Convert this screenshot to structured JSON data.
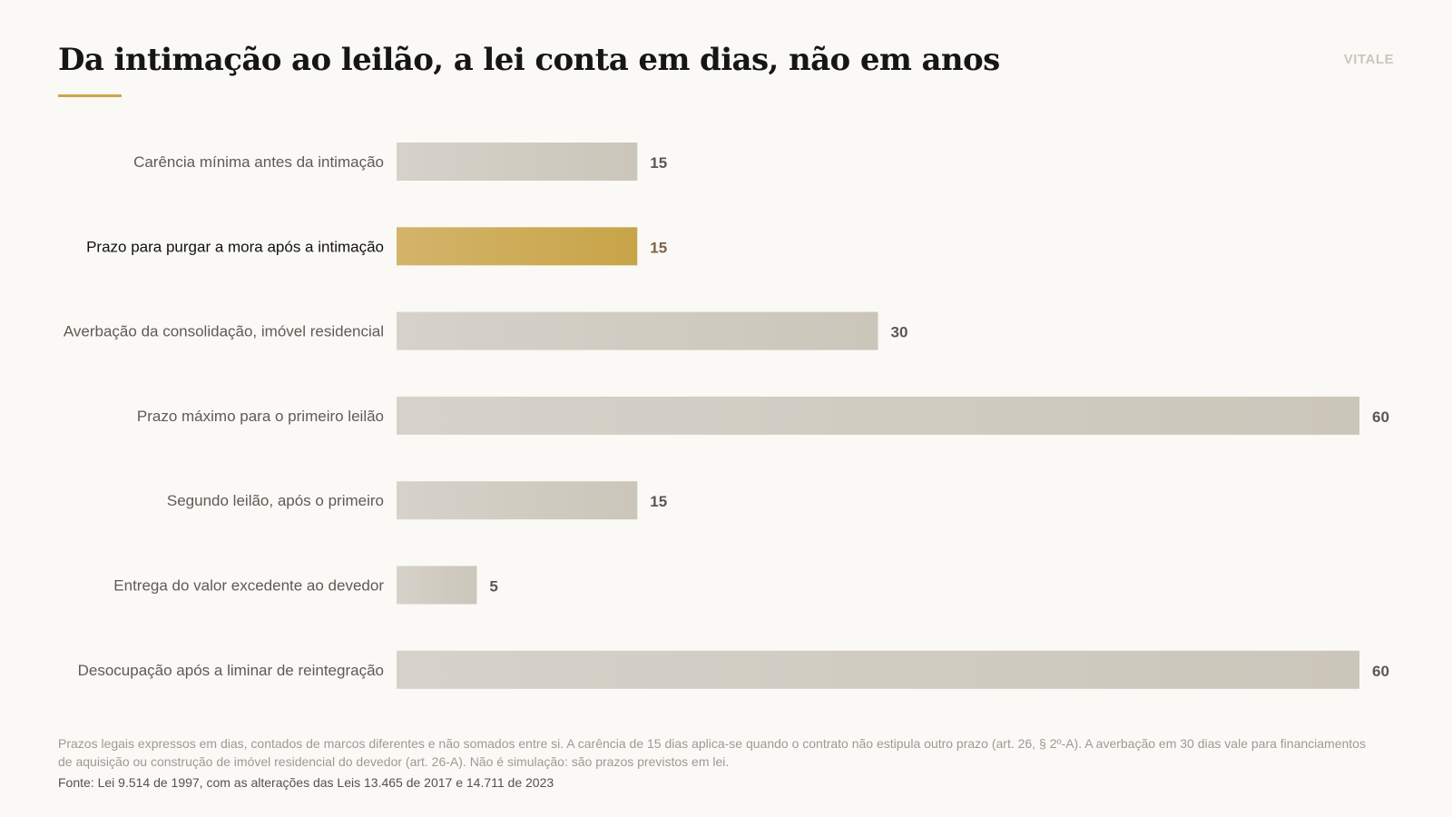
{
  "header": {
    "title": "Da intimação ao leilão, a lei conta em dias, não em anos",
    "brand": "VITALE"
  },
  "colors": {
    "accent": "#c9a84c",
    "bar_default": "#d0ccc2",
    "bar_highlight": "#c9a84c",
    "label_default": "#5e5b56",
    "label_highlight": "#111111",
    "value_default": "#5a5853",
    "value_highlight": "#7a6548"
  },
  "chart_data": {
    "type": "bar",
    "orientation": "horizontal",
    "title": "Da intimação ao leilão, a lei conta em dias, não em anos",
    "categories": [
      "Carência mínima antes da intimação",
      "Prazo para purgar a mora após a intimação",
      "Averbação da consolidação, imóvel residencial",
      "Prazo máximo para o primeiro leilão",
      "Segundo leilão, após o primeiro",
      "Entrega do valor excedente ao devedor",
      "Desocupação após a liminar de reintegração"
    ],
    "values": [
      15,
      15,
      30,
      60,
      15,
      5,
      60
    ],
    "value_labels": [
      "15",
      "15",
      "30",
      "60",
      "15",
      "5",
      "60"
    ],
    "highlight_index": 1,
    "xlim": [
      0,
      60
    ],
    "grid": false,
    "legend": "none"
  },
  "footer": {
    "note": "Prazos legais expressos em dias, contados de marcos diferentes e não somados entre si. A carência de 15 dias aplica-se quando o contrato não estipula outro prazo (art. 26, § 2º-A). A averbação em 30 dias vale para financiamentos de aquisição ou construção de imóvel residencial do devedor (art. 26-A). Não é simulação: são prazos previstos em lei.",
    "source": "Fonte: Lei 9.514 de 1997, com as alterações das Leis 13.465 de 2017 e 14.711 de 2023"
  }
}
